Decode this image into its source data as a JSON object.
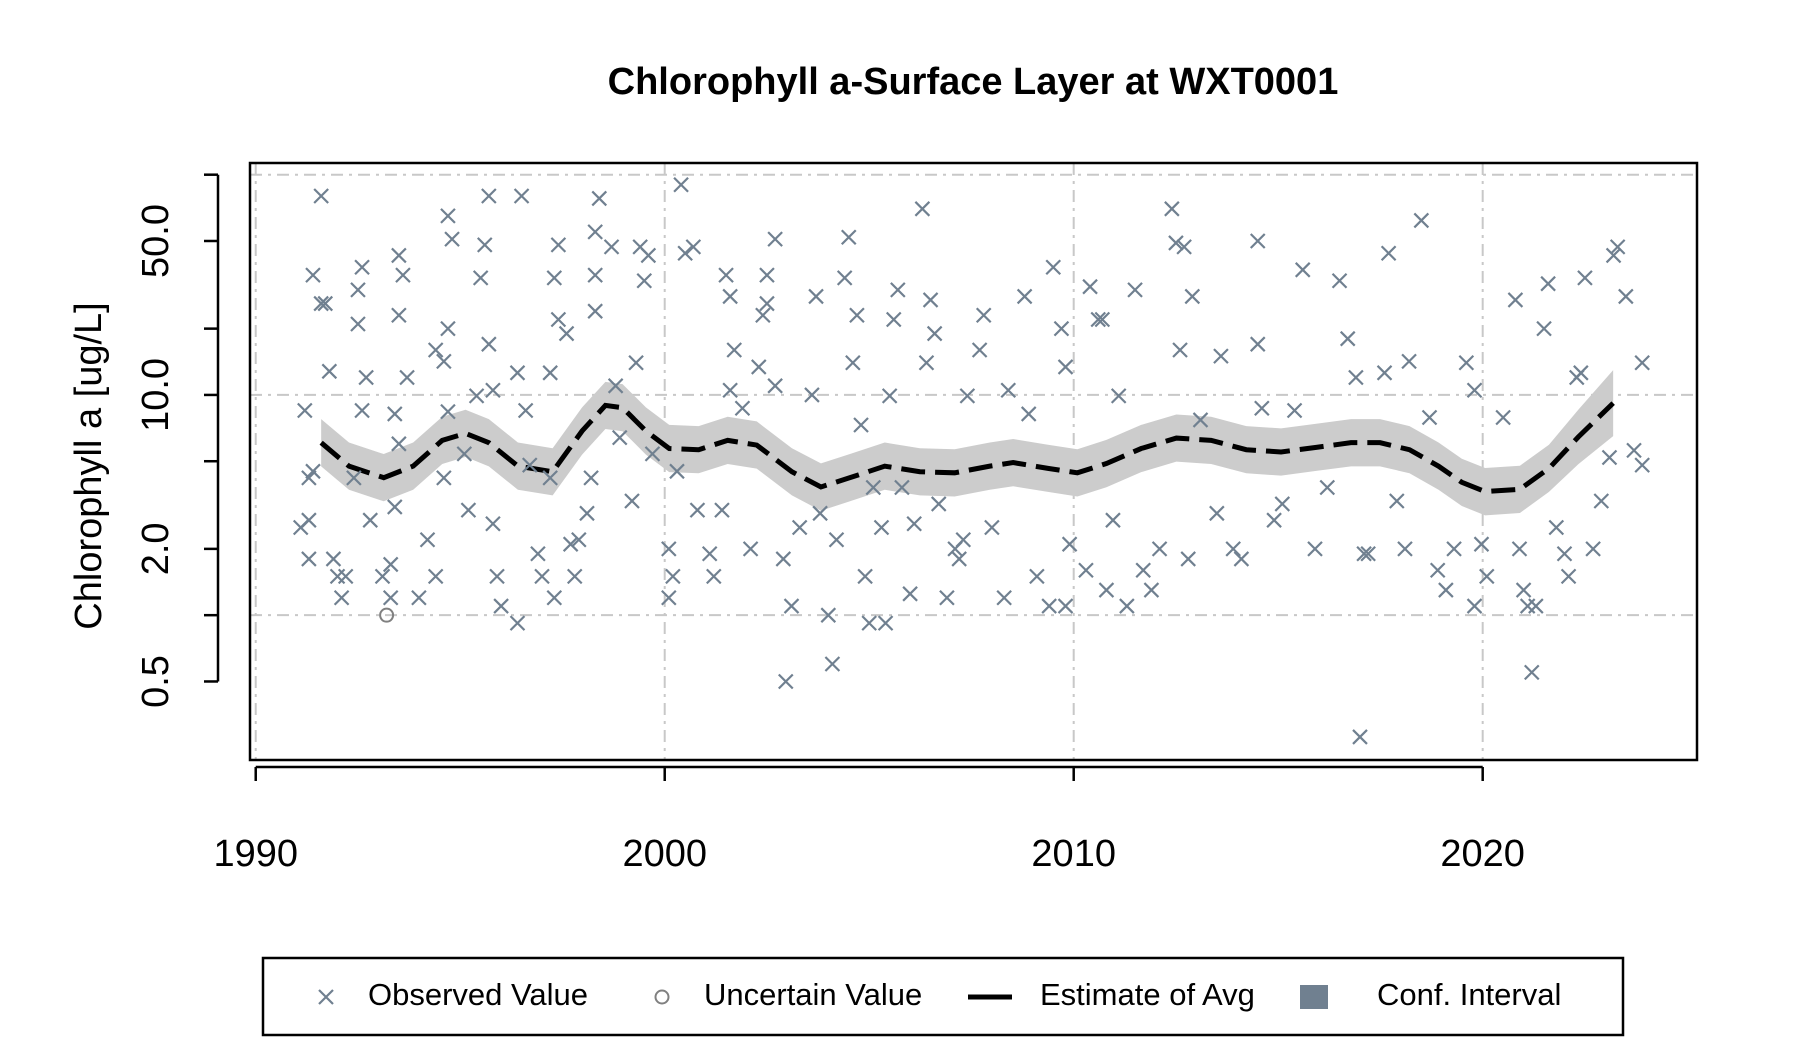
{
  "chart_data": {
    "type": "scatter",
    "title": "Chlorophyll a-Surface Layer at WXT0001",
    "ylabel": "Chlorophyll a [ug/L]",
    "xlim": [
      1989.86,
      2025.24
    ],
    "ylim": [
      0.22,
      113
    ],
    "log_y": true,
    "xticks": [
      1990,
      2000,
      2010,
      2020
    ],
    "yticks": [
      0.5,
      {
        "value": 2,
        "label": "2.0"
      },
      {
        "value": 10,
        "label": "10.0"
      },
      {
        "value": 50,
        "label": "50.0"
      }
    ],
    "yticks_minor": [
      1,
      5,
      20,
      100
    ],
    "ygrid": [
      1,
      10,
      100
    ],
    "xgrid": true,
    "legend": "bottom",
    "series": [
      {
        "name": "Observed Value",
        "marker": "x",
        "color": "#708090",
        "x": [
          1991.6,
          1991.4,
          1991.6,
          1991.7,
          1991.8,
          1991.2,
          1991.3,
          1991.4,
          1991.1,
          1991.3,
          1991.3,
          1992.0,
          1992.2,
          1991.9,
          1992.1,
          1992.6,
          1992.5,
          1992.5,
          1992.7,
          1992.6,
          1992.4,
          1992.8,
          1993.1,
          1993.3,
          1993.3,
          1993.5,
          1993.6,
          1993.5,
          1993.7,
          1993.4,
          1993.5,
          1993.4,
          1994.2,
          1994.4,
          1993.99,
          1994.4,
          1994.6,
          1994.7,
          1994.7,
          1994.8,
          1994.7,
          1994.6,
          1995.1,
          1995.2,
          1995.4,
          1995.5,
          1995.6,
          1995.7,
          1995.7,
          1995.8,
          1995.8,
          1995.9,
          1996.0,
          1996.4,
          1996.4,
          1996.5,
          1996.6,
          1996.7,
          1996.9,
          1997.0,
          1997.2,
          1997.3,
          1997.4,
          1997.3,
          1997.4,
          1997.2,
          1997.6,
          1997.7,
          1997.8,
          1997.9,
          1998.1,
          1998.2,
          1998.3,
          1998.3,
          1998.3,
          1998.4,
          1998.7,
          1998.8,
          1998.9,
          1999.2,
          1999.3,
          1999.4,
          1999.5,
          1999.6,
          1999.7,
          2000.1,
          2000.1,
          2000.2,
          2000.4,
          2000.5,
          2000.7,
          2000.3,
          2000.8,
          2001.1,
          2001.2,
          2001.4,
          2001.5,
          2001.6,
          2001.7,
          2001.6,
          2001.9,
          2002.1,
          2002.3,
          2002.4,
          2002.5,
          2002.5,
          2002.7,
          2002.7,
          2002.9,
          2002.96,
          2003.1,
          2003.3,
          2003.6,
          2003.7,
          2003.8,
          2004.0,
          2004.1,
          2004.2,
          2004.4,
          2004.5,
          2004.6,
          2004.7,
          2004.8,
          2004.9,
          2005.0,
          2005.1,
          2005.3,
          2005.4,
          2005.5,
          2005.6,
          2005.7,
          2005.8,
          2006.0,
          2006.1,
          2006.3,
          2006.4,
          2006.5,
          2006.6,
          2006.7,
          2006.9,
          2007.1,
          2007.2,
          2007.3,
          2007.4,
          2007.7,
          2007.8,
          2008.0,
          2008.3,
          2008.4,
          2008.8,
          2008.9,
          2009.1,
          2009.4,
          2009.5,
          2009.7,
          2009.8,
          2009.8,
          2009.9,
          2010.3,
          2010.4,
          2010.6,
          2010.7,
          2010.8,
          2010.96,
          2011.1,
          2011.3,
          2011.5,
          2011.7,
          2011.9,
          2012.1,
          2012.4,
          2012.5,
          2012.7,
          2012.6,
          2012.9,
          2012.8,
          2013.1,
          2013.5,
          2013.6,
          2013.9,
          2014.1,
          2014.5,
          2014.5,
          2014.6,
          2014.9,
          2015.1,
          2015.4,
          2015.6,
          2015.9,
          2016.2,
          2016.5,
          2016.7,
          2016.9,
          2017.1,
          2017.0,
          2017.2,
          2017.6,
          2017.7,
          2017.9,
          2018.1,
          2018.2,
          2018.5,
          2018.7,
          2018.9,
          2019.1,
          2019.3,
          2019.6,
          2019.8,
          2019.8,
          2019.97,
          2020.1,
          2020.5,
          2020.8,
          2020.9,
          2021.0,
          2021.1,
          2021.2,
          2021.3,
          2021.5,
          2021.6,
          2021.8,
          2022.0,
          2022.1,
          2022.3,
          2022.4,
          2022.5,
          2022.7,
          2022.9,
          2023.1,
          2023.2,
          2023.3,
          2023.5,
          2023.7,
          2023.9,
          2023.9
        ],
        "values": [
          80,
          35,
          26,
          26,
          12.8,
          8.5,
          4.2,
          4.5,
          2.5,
          1.8,
          2.7,
          1.5,
          1.5,
          1.8,
          1.2,
          38,
          30,
          21,
          12,
          8.5,
          4.2,
          2.7,
          1.5,
          1.7,
          1.2,
          43,
          35,
          23,
          12,
          8.2,
          6.0,
          3.1,
          2.2,
          1.5,
          1.2,
          16,
          14.2,
          20,
          65,
          51,
          8.4,
          4.2,
          5.4,
          3.0,
          9.9,
          34,
          48,
          80,
          17,
          10.5,
          2.6,
          1.5,
          1.1,
          0.92,
          12.6,
          80,
          8.5,
          4.8,
          1.9,
          1.5,
          4.2,
          1.2,
          48,
          34,
          22,
          12.6,
          19,
          2.1,
          1.5,
          2.2,
          2.9,
          4.2,
          24,
          35,
          55,
          78,
          47,
          11,
          6.4,
          3.3,
          14,
          47,
          33,
          43,
          5.4,
          2.0,
          1.2,
          1.5,
          90,
          44,
          47,
          4.5,
          3.0,
          1.9,
          1.5,
          3.0,
          35,
          28,
          16,
          10.5,
          8.7,
          2.0,
          13.4,
          23,
          26,
          35,
          51,
          11,
          1.8,
          0.5,
          1.1,
          2.5,
          10,
          28,
          2.9,
          1.0,
          0.6,
          2.2,
          34,
          52,
          14,
          23,
          7.3,
          1.5,
          0.92,
          3.8,
          2.5,
          0.92,
          9.9,
          22,
          30,
          3.8,
          1.25,
          2.6,
          70,
          14,
          27,
          19,
          3.2,
          1.2,
          2.0,
          1.8,
          2.2,
          9.9,
          16,
          23,
          2.5,
          1.2,
          10.5,
          28,
          8.2,
          1.5,
          1.1,
          38,
          20,
          13.4,
          1.1,
          2.1,
          1.6,
          31,
          22,
          22,
          1.3,
          2.7,
          9.9,
          1.1,
          30,
          1.6,
          1.3,
          2.0,
          70,
          49,
          47,
          16,
          28,
          1.8,
          7.7,
          2.9,
          15,
          2.0,
          1.8,
          17,
          50,
          8.7,
          2.7,
          3.2,
          8.5,
          37,
          2.0,
          3.8,
          33,
          18,
          12,
          1.9,
          0.28,
          1.9,
          12.6,
          44,
          3.3,
          2.0,
          14.2,
          62,
          7.9,
          1.6,
          1.3,
          2.0,
          14,
          10.5,
          1.1,
          2.1,
          1.5,
          7.9,
          27,
          2.0,
          1.3,
          1.1,
          0.55,
          1.1,
          20,
          32,
          2.5,
          1.9,
          1.5,
          12,
          12.6,
          34,
          2.0,
          3.3,
          5.2,
          43,
          47,
          28,
          5.6,
          14,
          4.8
        ]
      },
      {
        "name": "Uncertain Value",
        "marker": "o",
        "color": "#808080",
        "x": [
          1993.2
        ],
        "values": [
          1.0
        ]
      },
      {
        "name": "Estimate of Avg",
        "marker": "dashed-line",
        "color": "#000000",
        "x": [
          1991.6,
          1992.28,
          1993.13,
          1993.85,
          1994.56,
          1995.13,
          1995.7,
          1996.41,
          1997.26,
          1997.98,
          1998.55,
          1998.97,
          1999.54,
          2000.11,
          2000.83,
          2001.54,
          2002.25,
          2003.11,
          2003.82,
          2004.53,
          2005.38,
          2006.24,
          2007.09,
          2007.95,
          2008.52,
          2009.37,
          2010.09,
          2010.8,
          2011.65,
          2012.51,
          2013.36,
          2014.22,
          2015.07,
          2015.93,
          2016.78,
          2017.49,
          2018.21,
          2018.92,
          2019.49,
          2020.06,
          2020.91,
          2021.62,
          2022.34,
          2023.19
        ],
        "values": [
          6.07,
          4.75,
          4.21,
          4.75,
          6.22,
          6.69,
          6.07,
          4.75,
          4.48,
          6.86,
          8.96,
          8.75,
          6.86,
          5.71,
          5.64,
          6.22,
          5.92,
          4.48,
          3.82,
          4.21,
          4.75,
          4.48,
          4.43,
          4.75,
          4.93,
          4.64,
          4.43,
          4.88,
          5.71,
          6.37,
          6.22,
          5.64,
          5.51,
          5.78,
          6.07,
          6.07,
          5.64,
          4.75,
          4.01,
          3.64,
          3.73,
          4.64,
          6.45,
          9.18
        ]
      },
      {
        "name": "Conf. Interval",
        "marker": "band",
        "color": "#cccccc",
        "legend_color": "#708090",
        "x": [
          1991.6,
          1992.28,
          1993.13,
          1993.85,
          1994.56,
          1995.13,
          1995.7,
          1996.41,
          1997.26,
          1997.98,
          1998.55,
          1998.97,
          1999.54,
          2000.11,
          2000.83,
          2001.54,
          2002.25,
          2003.11,
          2003.82,
          2004.53,
          2005.38,
          2006.24,
          2007.09,
          2007.95,
          2008.52,
          2009.37,
          2010.09,
          2010.8,
          2011.65,
          2012.51,
          2013.36,
          2014.22,
          2015.07,
          2015.93,
          2016.78,
          2017.49,
          2018.21,
          2018.92,
          2019.49,
          2020.06,
          2020.91,
          2021.62,
          2022.34,
          2023.19
        ],
        "lower": [
          4.74,
          3.71,
          3.29,
          3.71,
          4.86,
          5.23,
          4.74,
          3.71,
          3.5,
          5.36,
          7.0,
          6.84,
          5.36,
          4.46,
          4.41,
          4.86,
          4.63,
          3.5,
          2.98,
          3.29,
          3.71,
          3.5,
          3.46,
          3.71,
          3.85,
          3.63,
          3.46,
          3.81,
          4.46,
          4.98,
          4.86,
          4.41,
          4.3,
          4.52,
          4.74,
          4.74,
          4.41,
          3.71,
          3.13,
          2.84,
          2.91,
          3.63,
          4.85,
          6.5
        ],
        "upper": [
          7.77,
          6.08,
          5.39,
          6.08,
          7.96,
          8.56,
          7.77,
          6.08,
          5.73,
          8.78,
          11.47,
          11.2,
          8.78,
          7.31,
          7.22,
          7.96,
          7.58,
          5.73,
          4.89,
          5.39,
          6.08,
          5.73,
          5.67,
          6.08,
          6.31,
          5.94,
          5.67,
          6.25,
          7.31,
          8.15,
          7.96,
          7.22,
          7.05,
          7.4,
          7.77,
          7.77,
          7.22,
          6.08,
          5.13,
          4.66,
          4.77,
          5.94,
          8.58,
          12.96
        ]
      }
    ]
  }
}
